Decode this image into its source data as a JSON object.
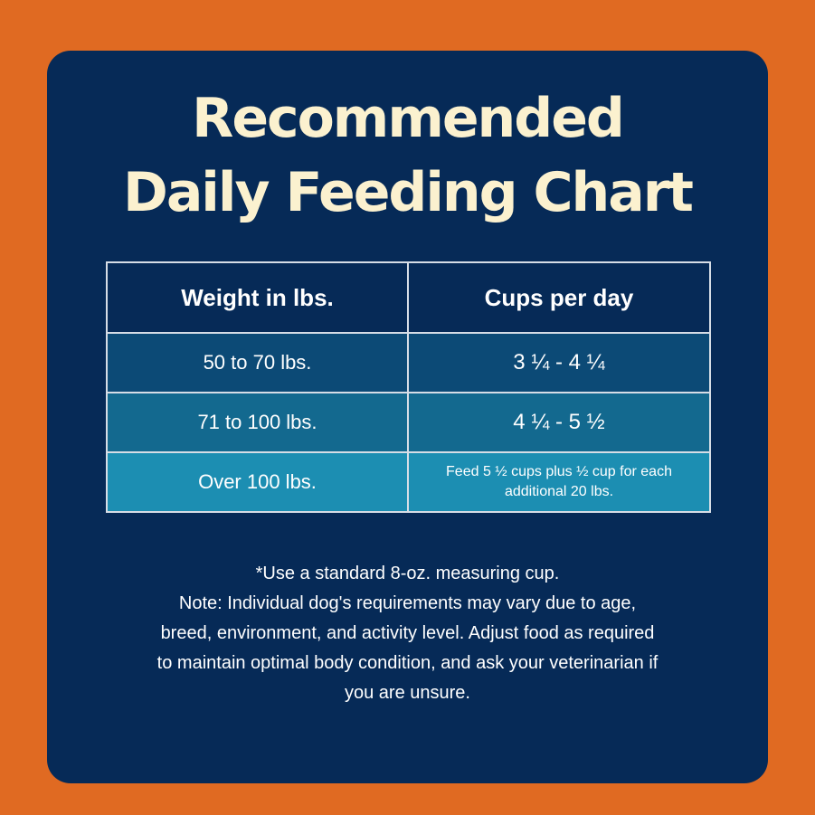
{
  "title": {
    "line1": "Recommended",
    "line2": "Daily Feeding Chart"
  },
  "table": {
    "headers": [
      "Weight in lbs.",
      "Cups per day"
    ],
    "rows": [
      [
        "50 to 70 lbs.",
        "3 ¼ - 4 ¼"
      ],
      [
        "71 to 100 lbs.",
        "4 ¼ - 5 ½"
      ],
      [
        "Over 100 lbs.",
        "Feed 5 ½ cups plus ½ cup for each additional 20 lbs."
      ]
    ]
  },
  "notes": {
    "line1": "*Use a standard 8-oz. measuring cup.",
    "line2": "Note: Individual dog's requirements may vary due to age,",
    "line3": "breed, environment, and activity level. Adjust food as required",
    "line4": "to maintain optimal body condition, and ask your veterinarian if",
    "line5": "you are unsure."
  },
  "colors": {
    "background": "#e06a22",
    "card": "#062a57",
    "title": "#fbf1cf",
    "row1": "#0c4a76",
    "row2": "#13698f",
    "row3": "#1c8eb2"
  }
}
